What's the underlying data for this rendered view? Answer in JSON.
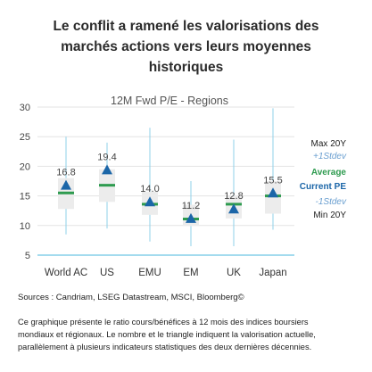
{
  "headline": {
    "line1": "Le conflit a ramené les valorisations des",
    "line2": "marchés actions vers leurs moyennes",
    "line3": "historiques"
  },
  "chart_data": {
    "type": "boxplot",
    "title": "12M Fwd P/E - Regions",
    "ylim": [
      5,
      30
    ],
    "yticks": [
      5,
      10,
      15,
      20,
      25,
      30
    ],
    "grid": true,
    "legend_position": "right",
    "categories": [
      "World AC",
      "US",
      "EMU",
      "EM",
      "UK",
      "Japan"
    ],
    "series": {
      "max_20y": [
        25.0,
        24.0,
        26.5,
        17.5,
        24.5,
        29.8
      ],
      "plus_1sd": [
        18.0,
        19.5,
        15.7,
        13.5,
        15.0,
        17.5
      ],
      "average": [
        15.5,
        16.8,
        13.6,
        11.1,
        13.6,
        15.0
      ],
      "minus_1sd": [
        12.8,
        14.0,
        11.8,
        9.9,
        11.2,
        12.0
      ],
      "min_20y": [
        8.5,
        9.5,
        7.3,
        6.5,
        6.5,
        9.3
      ],
      "current_pe": [
        16.8,
        19.4,
        14.0,
        11.2,
        12.8,
        15.5
      ]
    },
    "current_labels": [
      "16.8",
      "19.4",
      "14.0",
      "11.2",
      "12.8",
      "15.5"
    ],
    "legend": {
      "max": "Max 20Y",
      "plus_sd": "+1Stdev",
      "average": "Average",
      "current": "Current PE",
      "minus_sd": "-1Stdev",
      "min": "Min 20Y"
    },
    "colors": {
      "whisker": "#8fd0ea",
      "box": "#ececec",
      "average": "#2e9b4f",
      "current": "#1b66a8",
      "minmax_text": "#222222",
      "sd_text": "#6a9fd0",
      "grid": "#e3e3e3",
      "baseline": "#4ab7de"
    }
  },
  "footer": {
    "sources": "Sources : Candriam, LSEG Datastream, MSCI, Bloomberg©",
    "desc1": "Ce graphique présente le ratio cours/bénéfices à 12 mois des indices boursiers",
    "desc2": "mondiaux et régionaux. Le nombre et le triangle indiquent la valorisation actuelle,",
    "desc3": "parallèlement à plusieurs indicateurs statistiques des deux dernières décennies."
  }
}
